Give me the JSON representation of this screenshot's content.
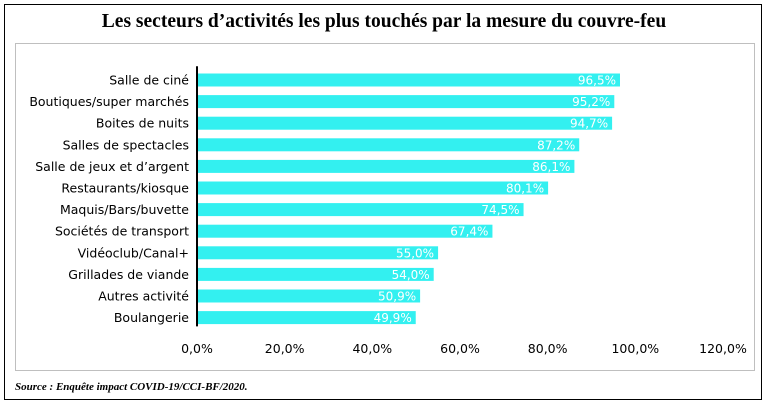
{
  "title": "Les secteurs d’activités les plus touchés par la mesure du couvre-feu",
  "source": "Source : Enquête impact COVID-19/CCI-BF/2020.",
  "colors": {
    "bar": "#33F0F0",
    "bar_label": "#ffffff",
    "axis": "#000000",
    "text": "#000000"
  },
  "chart_data": {
    "type": "bar",
    "orientation": "horizontal",
    "categories": [
      "Salle de ciné",
      "Boutiques/super marchés",
      "Boites de nuits",
      "Salles de spectacles",
      "Salle de jeux et d’argent",
      "Restaurants/kiosque",
      "Maquis/Bars/buvette",
      "Sociétés de transport",
      "Vidéoclub/Canal+",
      "Grillades de viande",
      "Autres activité",
      "Boulangerie"
    ],
    "values": [
      96.5,
      95.2,
      94.7,
      87.2,
      86.1,
      80.1,
      74.5,
      67.4,
      55.0,
      54.0,
      50.9,
      49.9
    ],
    "value_labels": [
      "96,5%",
      "95,2%",
      "94,7%",
      "87,2%",
      "86,1%",
      "80,1%",
      "74,5%",
      "67,4%",
      "55,0%",
      "54,0%",
      "50,9%",
      "49,9%"
    ],
    "xlim": [
      0,
      120
    ],
    "xticks": [
      0,
      20,
      40,
      60,
      80,
      100,
      120
    ],
    "xtick_labels": [
      "0,0%",
      "20,0%",
      "40,0%",
      "60,0%",
      "80,0%",
      "100,0%",
      "120,0%"
    ],
    "grid": false,
    "legend": "none"
  }
}
